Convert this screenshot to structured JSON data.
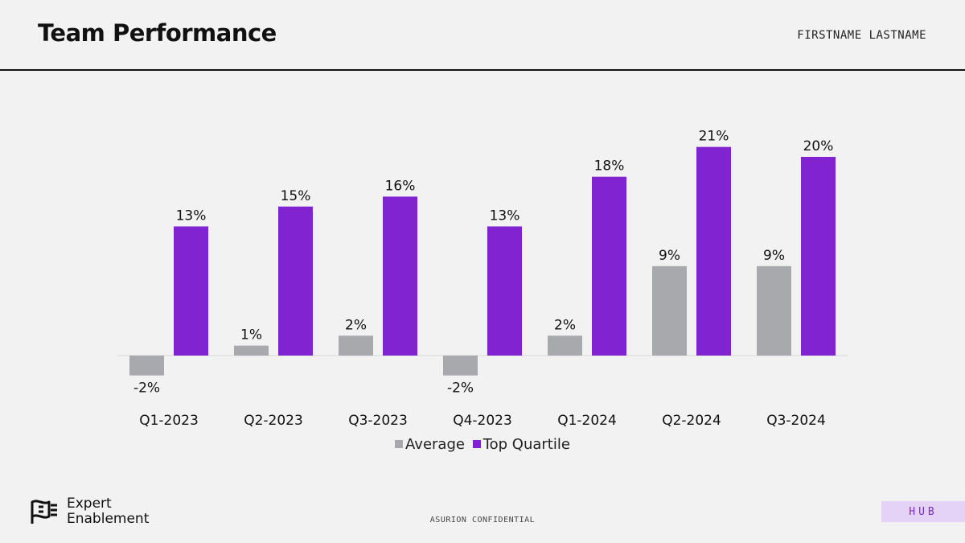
{
  "header": {
    "title": "Team Performance",
    "author": "FIRSTNAME LASTNAME"
  },
  "footer": {
    "logo_line1": "Expert",
    "logo_line2": "Enablement",
    "confidential": "ASURION CONFIDENTIAL",
    "hub_badge": "HUB"
  },
  "colors": {
    "average": "#a7a9ac",
    "top_quartile": "#8223d2",
    "hub_background": "#e5d3f7"
  },
  "chart_data": {
    "type": "bar",
    "categories": [
      "Q1-2023",
      "Q2-2023",
      "Q3-2023",
      "Q4-2023",
      "Q1-2024",
      "Q2-2024",
      "Q3-2024"
    ],
    "series": [
      {
        "name": "Average",
        "values": [
          -2,
          1,
          2,
          -2,
          2,
          9,
          9
        ],
        "labels": [
          "-2%",
          "1%",
          "2%",
          "-2%",
          "2%",
          "9%",
          "9%"
        ]
      },
      {
        "name": "Top Quartile",
        "values": [
          13,
          15,
          16,
          13,
          18,
          21,
          20
        ],
        "labels": [
          "13%",
          "15%",
          "16%",
          "13%",
          "18%",
          "21%",
          "20%"
        ]
      }
    ],
    "value_unit": "%",
    "legend_position": "bottom",
    "grid": false
  }
}
